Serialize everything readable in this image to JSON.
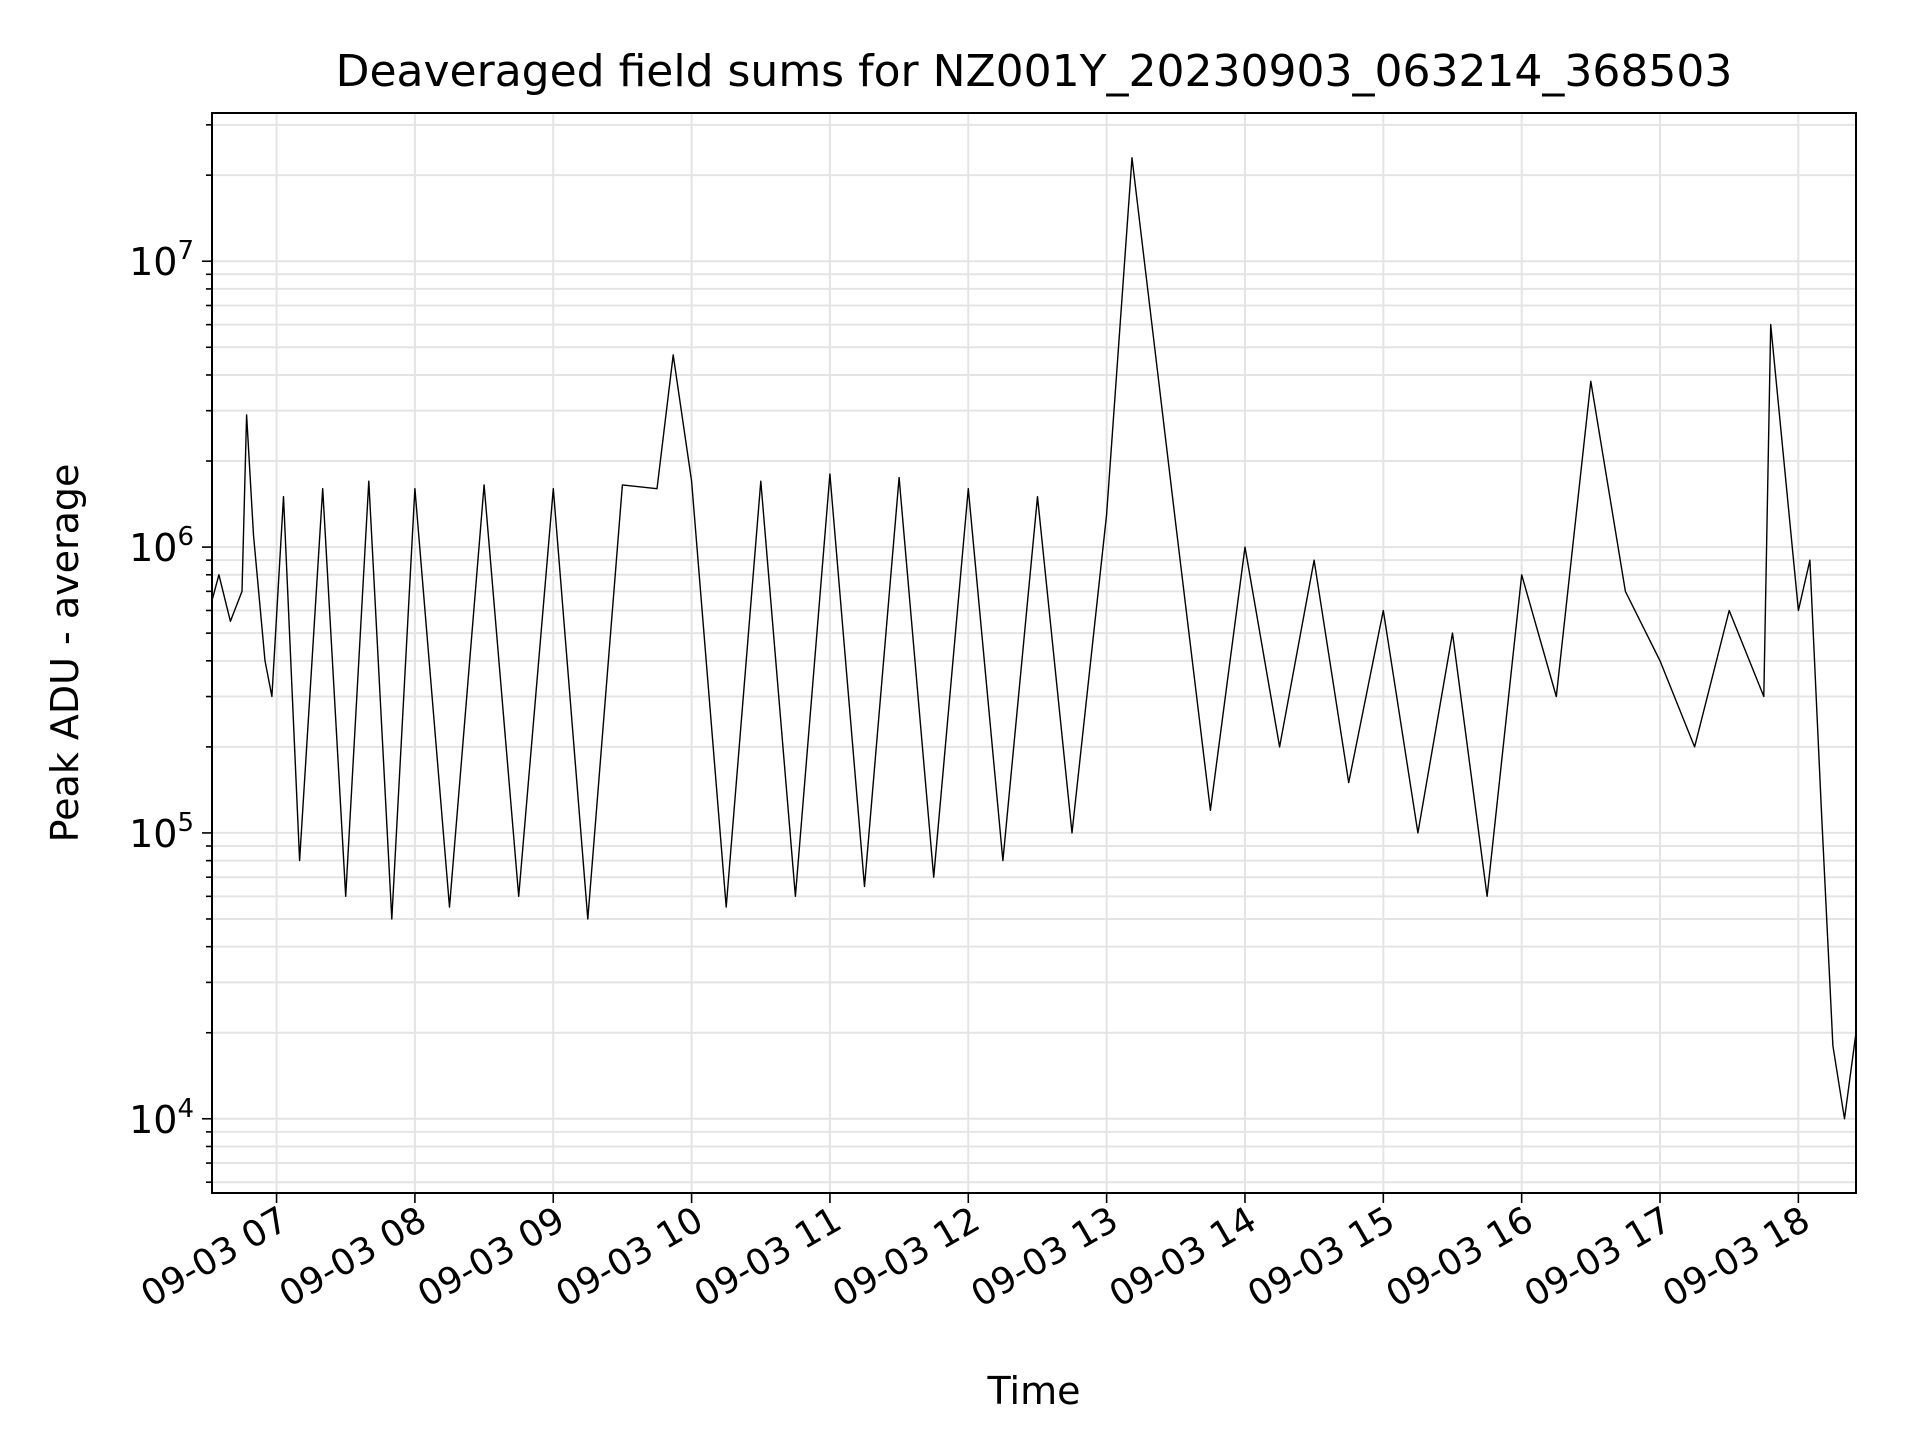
{
  "chart_data": {
    "type": "line",
    "title": "Deaveraged field sums for NZ001Y_20230903_063214_368503",
    "xlabel": "Time",
    "ylabel": "Peak ADU - average",
    "yscale": "log",
    "ylim": [
      5500,
      33000000
    ],
    "xlim": [
      "09-03 06:32",
      "09-03 18:25"
    ],
    "grid": true,
    "x_tick_labels": [
      "09-03 07",
      "09-03 08",
      "09-03 09",
      "09-03 10",
      "09-03 11",
      "09-03 12",
      "09-03 13",
      "09-03 14",
      "09-03 15",
      "09-03 16",
      "09-03 17",
      "09-03 18"
    ],
    "y_tick_labels": [
      {
        "value": 10000,
        "base": "10",
        "exp": "4"
      },
      {
        "value": 100000,
        "base": "10",
        "exp": "5"
      },
      {
        "value": 1000000,
        "base": "10",
        "exp": "6"
      },
      {
        "value": 10000000,
        "base": "10",
        "exp": "7"
      }
    ],
    "line_color": "#000000",
    "series": [
      {
        "x": [
          "09-03 06:32",
          "09-03 06:35",
          "09-03 06:40",
          "09-03 06:45",
          "09-03 06:47",
          "09-03 06:50",
          "09-03 06:55",
          "09-03 06:58",
          "09-03 07:03",
          "09-03 07:10",
          "09-03 07:20",
          "09-03 07:30",
          "09-03 07:40",
          "09-03 07:50",
          "09-03 08:00",
          "09-03 08:15",
          "09-03 08:30",
          "09-03 08:45",
          "09-03 09:00",
          "09-03 09:15",
          "09-03 09:30",
          "09-03 09:45",
          "09-03 09:52",
          "09-03 10:00",
          "09-03 10:15",
          "09-03 10:30",
          "09-03 10:45",
          "09-03 11:00",
          "09-03 11:15",
          "09-03 11:30",
          "09-03 11:45",
          "09-03 12:00",
          "09-03 12:15",
          "09-03 12:30",
          "09-03 12:45",
          "09-03 13:00",
          "09-03 13:11",
          "09-03 13:30",
          "09-03 13:45",
          "09-03 14:00",
          "09-03 14:15",
          "09-03 14:30",
          "09-03 14:45",
          "09-03 15:00",
          "09-03 15:15",
          "09-03 15:30",
          "09-03 15:45",
          "09-03 16:00",
          "09-03 16:15",
          "09-03 16:30",
          "09-03 16:45",
          "09-03 17:00",
          "09-03 17:15",
          "09-03 17:30",
          "09-03 17:45",
          "09-03 17:48",
          "09-03 18:00",
          "09-03 18:05",
          "09-03 18:10",
          "09-03 18:15",
          "09-03 18:20",
          "09-03 18:25"
        ],
        "y": [
          650000,
          800000,
          550000,
          700000,
          2900000,
          1100000,
          400000,
          300000,
          1500000,
          80000,
          1600000,
          60000,
          1700000,
          50000,
          1600000,
          55000,
          1650000,
          60000,
          1600000,
          50000,
          1650000,
          1600000,
          4700000,
          1700000,
          55000,
          1700000,
          60000,
          1800000,
          65000,
          1750000,
          70000,
          1600000,
          80000,
          1500000,
          100000,
          1300000,
          23000000,
          1200000,
          120000,
          1000000,
          200000,
          900000,
          150000,
          600000,
          100000,
          500000,
          60000,
          800000,
          300000,
          3800000,
          700000,
          400000,
          200000,
          600000,
          300000,
          6000000,
          600000,
          900000,
          120000,
          18000,
          10000,
          20000
        ]
      }
    ]
  }
}
